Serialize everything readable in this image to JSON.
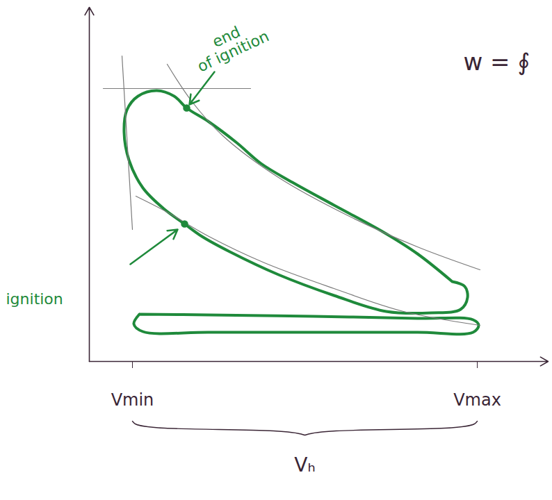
{
  "chart_data": {
    "type": "line",
    "title": "w = ∮",
    "xlabel": "Vₕ",
    "xlim": [
      0,
      660
    ],
    "ylim": [
      0,
      510
    ],
    "xticks": [
      {
        "value": 62,
        "label": "Vmin"
      },
      {
        "value": 558,
        "label": "Vmax"
      }
    ],
    "yticks": [],
    "tick_labels": "x",
    "grid": false,
    "series": [
      {
        "color": "#1f8a3b",
        "line_style": "bold",
        "x": [
          522,
          540,
          544,
          534,
          492,
          427,
          352,
          272,
          202,
          162,
          137,
          107,
          77,
          57,
          50,
          54,
          70,
          97,
          122,
          140,
          172,
          212,
          247,
          292,
          352,
          420,
          472,
          522
        ],
        "values": [
          115,
          108,
          92,
          75,
          70,
          72,
          95,
          125,
          158,
          180,
          198,
          220,
          250,
          290,
          330,
          362,
          382,
          390,
          382,
          365,
          345,
          315,
          285,
          258,
          225,
          188,
          155,
          115
        ]
      },
      {
        "color": "#1f8a3b",
        "line_style": "bold",
        "x": [
          72,
          172,
          322,
          472,
          552,
          560,
          552,
          472,
          322,
          172,
          77,
          64,
          72
        ],
        "values": [
          68,
          67,
          65,
          62,
          60,
          52,
          42,
          42,
          42,
          42,
          43,
          54,
          68
        ]
      },
      {
        "color": "#7a7a7a",
        "line_style": "thin",
        "x": [
          20,
          232
        ],
        "values": [
          393,
          393
        ]
      },
      {
        "color": "#7a7a7a",
        "line_style": "thin",
        "x": [
          47,
          62
        ],
        "values": [
          440,
          190
        ]
      },
      {
        "color": "#7a7a7a",
        "line_style": "thin",
        "x": [
          112,
          147,
          192,
          272,
          372,
          472,
          562
        ],
        "values": [
          428,
          375,
          325,
          265,
          210,
          165,
          132
        ]
      },
      {
        "color": "#7a7a7a",
        "line_style": "thin",
        "x": [
          67,
          112,
          172,
          252,
          352,
          452,
          562
        ],
        "values": [
          238,
          215,
          180,
          142,
          105,
          72,
          52
        ]
      }
    ],
    "annotations": [
      {
        "text": "end of ignition",
        "x": 140,
        "y": 365,
        "color": "#1f8a3b"
      },
      {
        "text": "ignition",
        "x": 137,
        "y": 198,
        "color": "#1f8a3b"
      }
    ]
  }
}
